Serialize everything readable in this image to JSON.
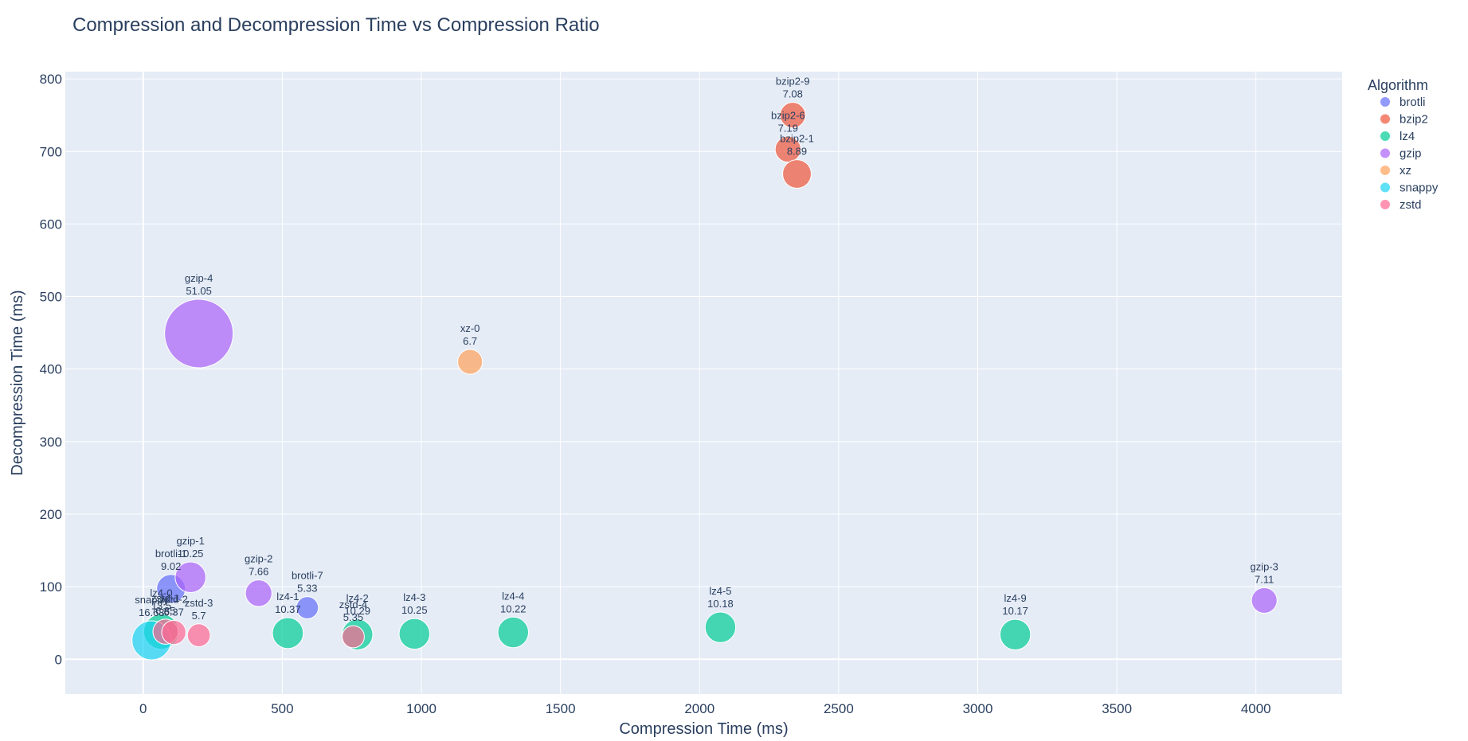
{
  "chart_data": {
    "type": "scatter",
    "title": "Compression and Decompression Time vs Compression Ratio",
    "xlabel": "Compression Time (ms)",
    "ylabel": "Decompression Time (ms)",
    "xlim": [
      -280,
      4310
    ],
    "ylim": [
      -48,
      810
    ],
    "xticks": [
      0,
      500,
      1000,
      1500,
      2000,
      2500,
      3000,
      3500,
      4000
    ],
    "yticks": [
      0,
      100,
      200,
      300,
      400,
      500,
      600,
      700,
      800
    ],
    "grid": true,
    "legend_title": "Algorithm",
    "legend_position": "top-right outside plot",
    "size_encodes": "compression ratio",
    "series": [
      {
        "name": "brotli",
        "color": "#636efa",
        "points": [
          {
            "label": "brotli-1",
            "x": 100,
            "y": 97,
            "ratio": 9.02
          },
          {
            "label": "brotli-7",
            "x": 590,
            "y": 71,
            "ratio": 5.33
          }
        ]
      },
      {
        "name": "bzip2",
        "color": "#ef553b",
        "points": [
          {
            "label": "bzip2-9",
            "x": 2335,
            "y": 750,
            "ratio": 7.08
          },
          {
            "label": "bzip2-6",
            "x": 2318,
            "y": 703,
            "ratio": 7.19
          },
          {
            "label": "bzip2-1",
            "x": 2350,
            "y": 669,
            "ratio": 8.89
          }
        ]
      },
      {
        "name": "lz4",
        "color": "#00cc96",
        "points": [
          {
            "label": "lz4-0",
            "x": 65,
            "y": 38,
            "ratio": 13.5
          },
          {
            "label": "lz4-1",
            "x": 520,
            "y": 36,
            "ratio": 10.37
          },
          {
            "label": "lz4-2",
            "x": 770,
            "y": 34,
            "ratio": 10.29
          },
          {
            "label": "lz4-3",
            "x": 975,
            "y": 35,
            "ratio": 10.25
          },
          {
            "label": "lz4-4",
            "x": 1330,
            "y": 37,
            "ratio": 10.22
          },
          {
            "label": "lz4-5",
            "x": 2075,
            "y": 44,
            "ratio": 10.18
          },
          {
            "label": "lz4-9",
            "x": 3135,
            "y": 34,
            "ratio": 10.17
          }
        ]
      },
      {
        "name": "gzip",
        "color": "#ab63fa",
        "points": [
          {
            "label": "gzip-4",
            "x": 200,
            "y": 449,
            "ratio": 51.05
          },
          {
            "label": "gzip-1",
            "x": 170,
            "y": 113,
            "ratio": 10.25
          },
          {
            "label": "gzip-2",
            "x": 415,
            "y": 91,
            "ratio": 7.66
          },
          {
            "label": "gzip-3",
            "x": 4030,
            "y": 81,
            "ratio": 7.11
          }
        ]
      },
      {
        "name": "xz",
        "color": "#ffa15a",
        "points": [
          {
            "label": "xz-0",
            "x": 1175,
            "y": 410,
            "ratio": 6.7
          }
        ]
      },
      {
        "name": "snappy",
        "color": "#19d3f3",
        "points": [
          {
            "label": "snappy",
            "x": 30,
            "y": 26,
            "ratio": 16.63
          }
        ]
      },
      {
        "name": "zstd",
        "color": "#ff6692",
        "points": [
          {
            "label": "zstd-1",
            "x": 80,
            "y": 38,
            "ratio": 6.85
          },
          {
            "label": "zstd-2",
            "x": 110,
            "y": 37,
            "ratio": 6.37
          },
          {
            "label": "zstd-3",
            "x": 200,
            "y": 33,
            "ratio": 5.7
          },
          {
            "label": "zstd-4",
            "x": 755,
            "y": 31,
            "ratio": 5.35
          }
        ]
      }
    ]
  }
}
